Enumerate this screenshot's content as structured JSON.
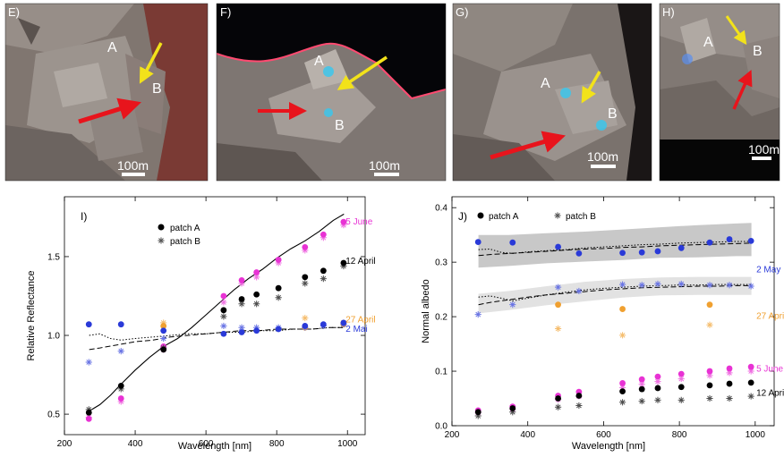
{
  "panels": [
    {
      "id": "E",
      "label": "E)",
      "point_a": "A",
      "point_b": "B",
      "scale": "100m"
    },
    {
      "id": "F",
      "label": "F)",
      "point_a": "A",
      "point_b": "B",
      "scale": "100m"
    },
    {
      "id": "G",
      "label": "G)",
      "point_a": "A",
      "point_b": "B",
      "scale": "100m"
    },
    {
      "id": "H",
      "label": "H)",
      "point_a": "A",
      "point_b": "B",
      "scale": "100m"
    }
  ],
  "colors": {
    "arrow_red": "#e8141c",
    "arrow_yellow": "#f2e21a",
    "blue_patch": "#35c8f0",
    "series_5june": "#e832d4",
    "series_27april": "#f0a030",
    "series_2mai": "#2a3ad8",
    "series_12april": "#000000",
    "band_dark": "#c8c8c8",
    "band_light": "#e2e2e2"
  },
  "chart_data": [
    {
      "type": "scatter",
      "panel_label": "I)",
      "title": "",
      "xlabel": "Wavelength [nm]",
      "ylabel": "Relative Reflectance",
      "xlim": [
        200,
        1050
      ],
      "ylim": [
        0.37,
        1.88
      ],
      "xticks": [
        200,
        400,
        600,
        800,
        1000
      ],
      "yticks": [
        0.5,
        1.0,
        1.5
      ],
      "grid": false,
      "legend": {
        "position": "top-center",
        "entries": [
          {
            "marker": "dot",
            "label": "patch A"
          },
          {
            "marker": "star",
            "label": "patch B"
          }
        ]
      },
      "series": [
        {
          "name": "5 June",
          "color": "#e832d4",
          "x": [
            269,
            360,
            480,
            650,
            701,
            743,
            805,
            880,
            932,
            989
          ],
          "patch_a": [
            0.47,
            0.6,
            0.93,
            1.25,
            1.35,
            1.4,
            1.48,
            1.56,
            1.64,
            1.72
          ],
          "patch_b": [
            0.48,
            0.58,
            0.91,
            1.21,
            1.33,
            1.37,
            1.46,
            1.54,
            1.62,
            1.7
          ]
        },
        {
          "name": "12 April",
          "color": "#000000",
          "x": [
            269,
            360,
            480,
            650,
            701,
            743,
            805,
            880,
            932,
            989
          ],
          "patch_a": [
            0.51,
            0.68,
            0.91,
            1.16,
            1.23,
            1.26,
            1.3,
            1.37,
            1.41,
            1.46
          ],
          "patch_b": [
            0.53,
            0.66,
            0.92,
            1.12,
            1.2,
            1.2,
            1.24,
            1.33,
            1.36,
            1.44
          ]
        },
        {
          "name": "27 April",
          "color": "#f0a030",
          "x": [
            480,
            880,
            989
          ],
          "patch_a": [
            1.06,
            1.05,
            1.07
          ],
          "patch_b": [
            1.08,
            1.11,
            1.08
          ]
        },
        {
          "name": "2 Mai",
          "color": "#2a3ad8",
          "x": [
            269,
            360,
            480,
            650,
            701,
            743,
            805,
            880,
            932,
            989
          ],
          "patch_a": [
            1.07,
            1.07,
            1.03,
            1.01,
            1.02,
            1.03,
            1.04,
            1.06,
            1.07,
            1.08
          ],
          "patch_b": [
            0.83,
            0.9,
            0.98,
            1.06,
            1.05,
            1.05,
            1.05,
            1.05,
            1.06,
            1.07
          ]
        }
      ],
      "curves": [
        {
          "style": "solid",
          "x": [
            270,
            300,
            330,
            360,
            400,
            440,
            480,
            520,
            560,
            600,
            640,
            680,
            720,
            760,
            800,
            840,
            880,
            920,
            960,
            990
          ],
          "y": [
            0.52,
            0.56,
            0.62,
            0.69,
            0.78,
            0.86,
            0.93,
            0.98,
            1.05,
            1.13,
            1.21,
            1.29,
            1.36,
            1.42,
            1.49,
            1.55,
            1.6,
            1.66,
            1.73,
            1.77
          ]
        },
        {
          "style": "dashed",
          "x": [
            270,
            300,
            350,
            400,
            450,
            500,
            550,
            600,
            650,
            700,
            750,
            800,
            850,
            900,
            950,
            990
          ],
          "y": [
            0.91,
            0.92,
            0.94,
            0.96,
            0.97,
            0.99,
            1.0,
            1.01,
            1.02,
            1.03,
            1.03,
            1.04,
            1.04,
            1.04,
            1.05,
            1.05
          ]
        },
        {
          "style": "dotted",
          "x": [
            270,
            300,
            330,
            360,
            400,
            450,
            500,
            550,
            600,
            650,
            700,
            750,
            800,
            850,
            900,
            950,
            990
          ],
          "y": [
            1.0,
            1.01,
            0.98,
            0.97,
            0.98,
            0.99,
            1.0,
            1.01,
            1.01,
            1.02,
            1.02,
            1.03,
            1.03,
            1.04,
            1.04,
            1.05,
            1.05
          ]
        }
      ],
      "annotations": [
        {
          "text": "5 June",
          "color": "#e832d4",
          "x": 995,
          "y": 1.72
        },
        {
          "text": "12 April",
          "color": "#000000",
          "x": 995,
          "y": 1.47
        },
        {
          "text": "27 April",
          "color": "#f0a030",
          "x": 995,
          "y": 1.1
        },
        {
          "text": "2 Mai",
          "color": "#2a3ad8",
          "x": 995,
          "y": 1.04
        }
      ]
    },
    {
      "type": "scatter",
      "panel_label": "J)",
      "title": "",
      "xlabel": "Wavelength [nm]",
      "ylabel": "Normal albedo",
      "xlim": [
        200,
        1050
      ],
      "ylim": [
        0.0,
        0.42
      ],
      "xticks": [
        200,
        400,
        600,
        800,
        1000
      ],
      "yticks": [
        0.0,
        0.1,
        0.2,
        0.3,
        0.4
      ],
      "grid": false,
      "legend": {
        "position": "top-left",
        "entries": [
          {
            "marker": "dot",
            "label": "patch A"
          },
          {
            "marker": "star",
            "label": "patch B"
          }
        ]
      },
      "series": [
        {
          "name": "2 May",
          "color": "#2a3ad8",
          "x": [
            269,
            360,
            480,
            535,
            650,
            701,
            743,
            805,
            880,
            932,
            989
          ],
          "patch_a": [
            0.337,
            0.336,
            0.328,
            0.316,
            0.317,
            0.318,
            0.32,
            0.326,
            0.336,
            0.342,
            0.339
          ],
          "patch_b": [
            0.204,
            0.222,
            0.254,
            0.247,
            0.259,
            0.258,
            0.26,
            0.26,
            0.258,
            0.258,
            0.256
          ]
        },
        {
          "name": "27 April",
          "color": "#f0a030",
          "x": [
            480,
            650,
            880
          ],
          "patch_a": [
            0.222,
            0.214,
            0.222
          ],
          "patch_b": [
            0.178,
            0.166,
            0.185
          ]
        },
        {
          "name": "5 June",
          "color": "#e832d4",
          "x": [
            269,
            360,
            480,
            535,
            650,
            701,
            743,
            805,
            880,
            932,
            989
          ],
          "patch_a": [
            0.028,
            0.035,
            0.055,
            0.062,
            0.078,
            0.085,
            0.09,
            0.095,
            0.1,
            0.105,
            0.108
          ],
          "patch_b": [
            0.024,
            0.03,
            0.048,
            0.054,
            0.07,
            0.076,
            0.081,
            0.086,
            0.092,
            0.097,
            0.1
          ]
        },
        {
          "name": "12 April",
          "color": "#000000",
          "x": [
            269,
            360,
            480,
            535,
            650,
            701,
            743,
            805,
            880,
            932,
            989
          ],
          "patch_a": [
            0.025,
            0.032,
            0.05,
            0.055,
            0.063,
            0.067,
            0.069,
            0.071,
            0.074,
            0.077,
            0.079
          ],
          "patch_b": [
            0.018,
            0.025,
            0.034,
            0.037,
            0.043,
            0.045,
            0.047,
            0.047,
            0.05,
            0.05,
            0.054
          ]
        }
      ],
      "bands": [
        {
          "shade": "dark",
          "x": [
            270,
            350,
            450,
            550,
            650,
            750,
            850,
            950,
            990
          ],
          "lower": [
            0.29,
            0.293,
            0.298,
            0.301,
            0.304,
            0.308,
            0.309,
            0.311,
            0.311
          ],
          "upper": [
            0.35,
            0.35,
            0.353,
            0.356,
            0.36,
            0.364,
            0.368,
            0.371,
            0.372
          ]
        },
        {
          "shade": "light",
          "x": [
            270,
            350,
            450,
            550,
            650,
            750,
            850,
            950,
            990
          ],
          "lower": [
            0.206,
            0.212,
            0.221,
            0.228,
            0.235,
            0.239,
            0.24,
            0.24,
            0.24
          ],
          "upper": [
            0.242,
            0.247,
            0.256,
            0.264,
            0.269,
            0.272,
            0.273,
            0.273,
            0.273
          ]
        }
      ],
      "curves": [
        {
          "style": "dashed",
          "x": [
            270,
            300,
            350,
            400,
            450,
            500,
            550,
            600,
            650,
            700,
            750,
            800,
            850,
            900,
            950,
            990
          ],
          "y": [
            0.312,
            0.314,
            0.316,
            0.318,
            0.32,
            0.322,
            0.324,
            0.325,
            0.327,
            0.328,
            0.33,
            0.331,
            0.332,
            0.333,
            0.334,
            0.335
          ]
        },
        {
          "style": "dotted",
          "x": [
            270,
            300,
            330,
            360,
            400,
            450,
            500,
            550,
            600,
            650,
            700,
            750,
            800,
            850,
            900,
            950,
            990
          ],
          "y": [
            0.323,
            0.324,
            0.318,
            0.316,
            0.319,
            0.321,
            0.323,
            0.326,
            0.328,
            0.33,
            0.332,
            0.333,
            0.335,
            0.336,
            0.337,
            0.338,
            0.338
          ]
        },
        {
          "style": "dashed",
          "x": [
            270,
            300,
            350,
            400,
            450,
            500,
            550,
            600,
            650,
            700,
            750,
            800,
            850,
            900,
            950,
            990
          ],
          "y": [
            0.222,
            0.226,
            0.231,
            0.236,
            0.24,
            0.243,
            0.246,
            0.249,
            0.251,
            0.253,
            0.254,
            0.255,
            0.256,
            0.256,
            0.257,
            0.257
          ]
        },
        {
          "style": "dotted",
          "x": [
            270,
            300,
            330,
            360,
            400,
            450,
            500,
            550,
            600,
            650,
            700,
            750,
            800,
            850,
            900,
            950,
            990
          ],
          "y": [
            0.236,
            0.238,
            0.234,
            0.229,
            0.234,
            0.24,
            0.245,
            0.249,
            0.252,
            0.254,
            0.256,
            0.257,
            0.258,
            0.258,
            0.259,
            0.259,
            0.259
          ]
        }
      ],
      "annotations": [
        {
          "text": "2 May",
          "color": "#2a3ad8",
          "x": 1003,
          "y": 0.286
        },
        {
          "text": "27 April",
          "color": "#f0a030",
          "x": 1003,
          "y": 0.201
        },
        {
          "text": "5 June",
          "color": "#e832d4",
          "x": 1003,
          "y": 0.104
        },
        {
          "text": "12 April",
          "color": "#000000",
          "x": 1003,
          "y": 0.06
        }
      ]
    }
  ]
}
